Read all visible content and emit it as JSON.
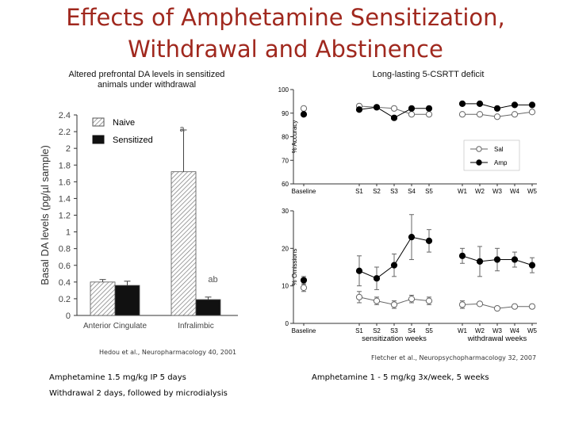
{
  "slide": {
    "title_line1": "Effects of Amphetamine Sensitization,",
    "title_line2": "Withdrawal and Abstinence",
    "left_subtitle_line1": "Altered prefrontal DA levels in sensitized",
    "left_subtitle_line2": "animals under withdrawal",
    "right_subtitle": "Long-lasting 5-CSRTT deficit",
    "left_citation": "Hedou et al., Neuropharmacology 40, 2001",
    "right_citation": "Fletcher et al., Neuropsychopharmacology 32, 2007",
    "left_note_line1": "Amphetamine 1.5 mg/kg IP 5 days",
    "left_note_line2": "Withdrawal 2 days, followed by microdialysis",
    "right_note": "Amphetamine 1 - 5 mg/kg 3x/week, 5 weeks"
  },
  "chart_data": [
    {
      "type": "bar",
      "ylabel": "Basal DA levels (pg/µl sample)",
      "ylim": [
        0,
        2.4
      ],
      "yticks": [
        "0",
        "0.2",
        "0.4",
        "0.6",
        "0.8",
        "1",
        "1.2",
        "1.4",
        "1.6",
        "1.8",
        "2",
        "2.2",
        "2.4"
      ],
      "categories": [
        "Anterior Cingulate",
        "Infralimbic"
      ],
      "series": [
        {
          "name": "Naive",
          "values": [
            0.4,
            1.72
          ],
          "errors": [
            0.03,
            0.5
          ]
        },
        {
          "name": "Sensitized",
          "values": [
            0.36,
            0.19
          ],
          "errors": [
            0.05,
            0.03
          ]
        }
      ],
      "annotations": [
        "a",
        "ab"
      ],
      "legend": "top-left",
      "grid": false
    },
    {
      "type": "line",
      "ylabel": "% Accuracy",
      "ylim": [
        60,
        100
      ],
      "yticks": [
        "60",
        "70",
        "80",
        "90",
        "100"
      ],
      "x": [
        "Baseline",
        "S1",
        "S2",
        "S3",
        "S4",
        "S5",
        "W1",
        "W2",
        "W3",
        "W4",
        "W5"
      ],
      "series": [
        {
          "name": "Sal",
          "values": [
            92,
            93,
            92.5,
            92,
            89.5,
            89.5,
            89.5,
            89.5,
            88.5,
            89.5,
            90.5
          ]
        },
        {
          "name": "Amp",
          "values": [
            89.5,
            91.5,
            92.5,
            88,
            92,
            92,
            94,
            94,
            92,
            93.5,
            93.5
          ]
        }
      ],
      "legend": "right",
      "grid": false
    },
    {
      "type": "line",
      "ylabel": "% Omissions",
      "ylim": [
        0,
        30
      ],
      "yticks": [
        "0",
        "10",
        "20",
        "30"
      ],
      "x": [
        "Baseline",
        "S1",
        "S2",
        "S3",
        "S4",
        "S5",
        "W1",
        "W2",
        "W3",
        "W4",
        "W5"
      ],
      "group_labels": [
        "sensitization weeks",
        "withdrawal weeks"
      ],
      "series": [
        {
          "name": "Sal",
          "values": [
            9.5,
            7,
            6,
            5,
            6.5,
            6,
            5,
            5.2,
            4,
            4.5,
            4.5
          ]
        },
        {
          "name": "Amp",
          "values": [
            11.5,
            14,
            12,
            15.5,
            23,
            22,
            18,
            16.5,
            17,
            17,
            15.5
          ]
        }
      ],
      "grid": false
    }
  ]
}
